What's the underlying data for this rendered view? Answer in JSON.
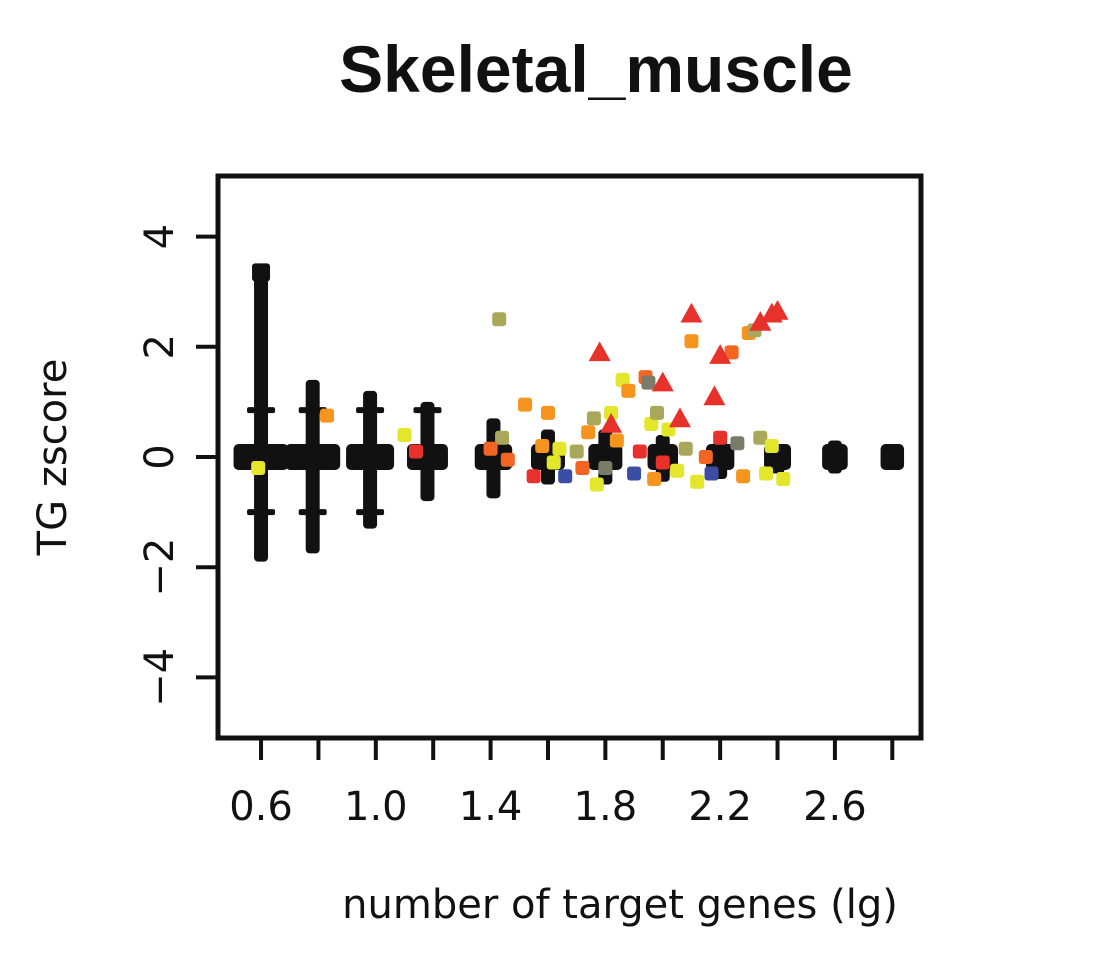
{
  "chart_data": {
    "type": "scatter",
    "title": "Skeletal_muscle",
    "xlabel": "number of target genes (lg)",
    "ylabel": "TG zscore",
    "xlim": [
      0.45,
      2.9
    ],
    "ylim": [
      -5.1,
      5.1
    ],
    "x_ticks": [
      0.6,
      0.8,
      1.0,
      1.2,
      1.4,
      1.6,
      1.8,
      2.0,
      2.2,
      2.4,
      2.6,
      2.8
    ],
    "x_tick_labels": [
      {
        "value": 0.6,
        "label": "0.6"
      },
      {
        "value": 1.0,
        "label": "1.0"
      },
      {
        "value": 1.4,
        "label": "1.4"
      },
      {
        "value": 1.8,
        "label": "1.8"
      },
      {
        "value": 2.2,
        "label": "2.2"
      },
      {
        "value": 2.6,
        "label": "2.6"
      }
    ],
    "y_ticks": [
      {
        "value": 4,
        "label": "4"
      },
      {
        "value": 2,
        "label": "2"
      },
      {
        "value": 0,
        "label": "0"
      },
      {
        "value": -2,
        "label": "−2"
      },
      {
        "value": -4,
        "label": "−4"
      }
    ],
    "grid": false,
    "legend": "none",
    "colors": {
      "background_genes": "#111111",
      "yellow": "#e3e62a",
      "olive": "#a9a85a",
      "orange": "#f7941d",
      "dark_orange": "#f26522",
      "red": "#e8312a",
      "blue": "#3b4ea3",
      "gray": "#7b7b6a"
    },
    "background_columns": [
      {
        "x": 0.6,
        "ymin": -1.9,
        "ymax": 3.4,
        "spread": 0.5
      },
      {
        "x": 0.78,
        "ymin": -1.75,
        "ymax": 1.4,
        "spread": 0.5
      },
      {
        "x": 0.98,
        "ymin": -1.3,
        "ymax": 1.2,
        "spread": 0.4
      },
      {
        "x": 1.18,
        "ymin": -0.8,
        "ymax": 1.0,
        "spread": 0.3
      },
      {
        "x": 1.41,
        "ymin": -0.75,
        "ymax": 0.7,
        "spread": 0.25
      },
      {
        "x": 1.6,
        "ymin": -0.5,
        "ymax": 0.5,
        "spread": 0.2
      },
      {
        "x": 1.8,
        "ymin": -0.5,
        "ymax": 0.5,
        "spread": 0.2
      },
      {
        "x": 2.0,
        "ymin": -0.45,
        "ymax": 0.4,
        "spread": 0.15
      },
      {
        "x": 2.2,
        "ymin": -0.4,
        "ymax": 0.3,
        "spread": 0.12
      },
      {
        "x": 2.4,
        "ymin": -0.3,
        "ymax": 0.2,
        "spread": 0.1
      },
      {
        "x": 2.6,
        "ymin": -0.3,
        "ymax": 0.3,
        "spread": 0.08
      },
      {
        "x": 2.8,
        "ymin": -0.1,
        "ymax": 0.1,
        "spread": 0.05
      }
    ],
    "highlighted_squares": [
      {
        "x": 0.59,
        "y": -0.2,
        "color": "yellow"
      },
      {
        "x": 0.83,
        "y": 0.75,
        "color": "orange"
      },
      {
        "x": 1.1,
        "y": 0.4,
        "color": "yellow"
      },
      {
        "x": 1.14,
        "y": 0.1,
        "color": "red"
      },
      {
        "x": 1.43,
        "y": 2.5,
        "color": "olive"
      },
      {
        "x": 1.44,
        "y": 0.35,
        "color": "olive"
      },
      {
        "x": 1.4,
        "y": 0.15,
        "color": "dark_orange"
      },
      {
        "x": 1.52,
        "y": 0.95,
        "color": "orange"
      },
      {
        "x": 1.6,
        "y": 0.8,
        "color": "orange"
      },
      {
        "x": 1.55,
        "y": -0.35,
        "color": "red"
      },
      {
        "x": 1.58,
        "y": 0.2,
        "color": "orange"
      },
      {
        "x": 1.62,
        "y": -0.1,
        "color": "yellow"
      },
      {
        "x": 1.66,
        "y": -0.35,
        "color": "blue"
      },
      {
        "x": 1.7,
        "y": 0.1,
        "color": "olive"
      },
      {
        "x": 1.74,
        "y": 0.45,
        "color": "orange"
      },
      {
        "x": 1.76,
        "y": 0.7,
        "color": "olive"
      },
      {
        "x": 1.77,
        "y": -0.5,
        "color": "yellow"
      },
      {
        "x": 1.8,
        "y": -0.2,
        "color": "gray"
      },
      {
        "x": 1.82,
        "y": 0.8,
        "color": "yellow"
      },
      {
        "x": 1.84,
        "y": 0.3,
        "color": "orange"
      },
      {
        "x": 1.86,
        "y": 1.4,
        "color": "yellow"
      },
      {
        "x": 1.88,
        "y": 1.2,
        "color": "orange"
      },
      {
        "x": 1.9,
        "y": -0.3,
        "color": "blue"
      },
      {
        "x": 1.92,
        "y": 0.1,
        "color": "red"
      },
      {
        "x": 1.94,
        "y": 1.45,
        "color": "dark_orange"
      },
      {
        "x": 1.95,
        "y": 1.35,
        "color": "gray"
      },
      {
        "x": 1.96,
        "y": 0.6,
        "color": "yellow"
      },
      {
        "x": 1.97,
        "y": -0.4,
        "color": "orange"
      },
      {
        "x": 1.98,
        "y": 0.8,
        "color": "olive"
      },
      {
        "x": 2.02,
        "y": 0.5,
        "color": "yellow"
      },
      {
        "x": 2.05,
        "y": -0.25,
        "color": "yellow"
      },
      {
        "x": 2.08,
        "y": 0.15,
        "color": "olive"
      },
      {
        "x": 2.1,
        "y": 2.1,
        "color": "orange"
      },
      {
        "x": 2.12,
        "y": -0.45,
        "color": "yellow"
      },
      {
        "x": 2.15,
        "y": 0.0,
        "color": "dark_orange"
      },
      {
        "x": 2.17,
        "y": -0.3,
        "color": "blue"
      },
      {
        "x": 2.2,
        "y": 0.35,
        "color": "red"
      },
      {
        "x": 2.24,
        "y": 1.9,
        "color": "dark_orange"
      },
      {
        "x": 2.26,
        "y": 0.25,
        "color": "gray"
      },
      {
        "x": 2.28,
        "y": -0.35,
        "color": "orange"
      },
      {
        "x": 2.3,
        "y": 2.25,
        "color": "orange"
      },
      {
        "x": 2.32,
        "y": 2.3,
        "color": "olive"
      },
      {
        "x": 2.34,
        "y": 0.35,
        "color": "olive"
      },
      {
        "x": 2.36,
        "y": -0.3,
        "color": "yellow"
      },
      {
        "x": 2.38,
        "y": 0.2,
        "color": "yellow"
      },
      {
        "x": 2.42,
        "y": -0.4,
        "color": "yellow"
      },
      {
        "x": 1.46,
        "y": -0.05,
        "color": "dark_orange"
      },
      {
        "x": 1.64,
        "y": 0.15,
        "color": "yellow"
      },
      {
        "x": 1.72,
        "y": -0.2,
        "color": "dark_orange"
      },
      {
        "x": 2.0,
        "y": -0.1,
        "color": "red"
      }
    ],
    "highlighted_triangles": [
      {
        "x": 1.78,
        "y": 1.9,
        "color": "red"
      },
      {
        "x": 1.82,
        "y": 0.6,
        "color": "red"
      },
      {
        "x": 2.0,
        "y": 1.35,
        "color": "red"
      },
      {
        "x": 2.06,
        "y": 0.7,
        "color": "red"
      },
      {
        "x": 2.1,
        "y": 2.6,
        "color": "red"
      },
      {
        "x": 2.18,
        "y": 1.1,
        "color": "red"
      },
      {
        "x": 2.2,
        "y": 1.85,
        "color": "red"
      },
      {
        "x": 2.34,
        "y": 2.45,
        "color": "red"
      },
      {
        "x": 2.38,
        "y": 2.6,
        "color": "red"
      },
      {
        "x": 2.4,
        "y": 2.65,
        "color": "red"
      }
    ]
  }
}
